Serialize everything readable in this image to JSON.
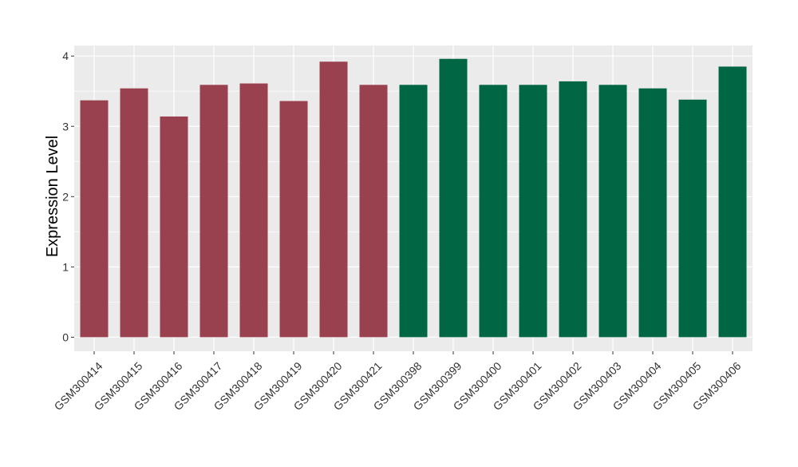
{
  "chart_data": {
    "type": "bar",
    "title": "",
    "xlabel": "",
    "ylabel": "Expression Level",
    "ylim": [
      -0.2,
      4.15
    ],
    "yticks": [
      0,
      1,
      2,
      3,
      4
    ],
    "grid": true,
    "legend": "none",
    "panel_background": "#EBEBEB",
    "grid_color": "#FFFFFF",
    "categories": [
      "GSM300414",
      "GSM300415",
      "GSM300416",
      "GSM300417",
      "GSM300418",
      "GSM300419",
      "GSM300420",
      "GSM300421",
      "GSM300398",
      "GSM300399",
      "GSM300400",
      "GSM300401",
      "GSM300402",
      "GSM300403",
      "GSM300404",
      "GSM300405",
      "GSM300406"
    ],
    "values": [
      3.37,
      3.54,
      3.14,
      3.59,
      3.61,
      3.36,
      3.92,
      3.59,
      3.59,
      3.96,
      3.59,
      3.59,
      3.64,
      3.59,
      3.54,
      3.38,
      3.85
    ],
    "colors": [
      "#9A4150",
      "#9A4150",
      "#9A4150",
      "#9A4150",
      "#9A4150",
      "#9A4150",
      "#9A4150",
      "#9A4150",
      "#006644",
      "#006644",
      "#006644",
      "#006644",
      "#006644",
      "#006644",
      "#006644",
      "#006644",
      "#006644"
    ]
  }
}
